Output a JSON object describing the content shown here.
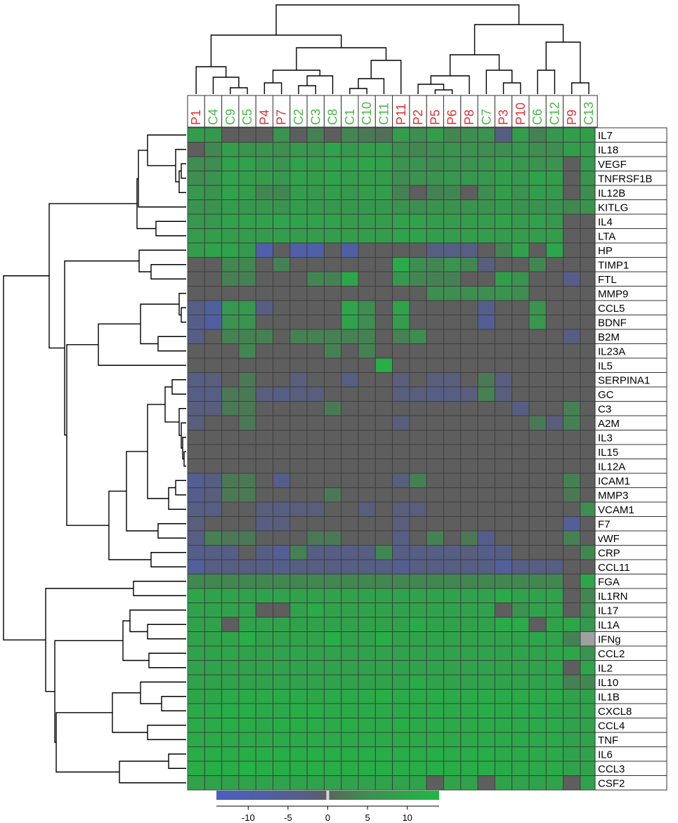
{
  "chart_data": {
    "type": "heatmap",
    "title": "",
    "columns": [
      "P1",
      "C4",
      "C9",
      "C5",
      "P4",
      "P7",
      "C2",
      "C3",
      "C8",
      "C1",
      "C10",
      "C11",
      "P11",
      "P2",
      "P5",
      "P6",
      "P8",
      "C7",
      "P3",
      "P10",
      "C6",
      "C12",
      "P9",
      "C13"
    ],
    "column_groups": {
      "P": "#e03030",
      "C": "#45b845"
    },
    "rows": [
      "IL7",
      "IL18",
      "VEGF",
      "TNFRSF1B",
      "IL12B",
      "KITLG",
      "IL4",
      "LTA",
      "HP",
      "TIMP1",
      "FTL",
      "MMP9",
      "CCL5",
      "BDNF",
      "B2M",
      "IL23A",
      "IL5",
      "SERPINA1",
      "GC",
      "C3",
      "A2M",
      "IL3",
      "IL15",
      "IL12A",
      "ICAM1",
      "MMP3",
      "VCAM1",
      "F7",
      "vWF",
      "CRP",
      "CCL11",
      "FGA",
      "IL1RN",
      "IL17",
      "IL1A",
      "IFNg",
      "CCL2",
      "IL2",
      "IL10",
      "IL1B",
      "CXCL8",
      "CCL4",
      "TNF",
      "IL6",
      "CCL3",
      "CSF2"
    ],
    "values": [
      [
        8,
        7,
        0,
        0,
        0,
        6,
        0,
        3,
        0,
        4,
        2,
        1,
        8,
        5,
        8,
        4,
        5,
        6,
        -3,
        8,
        3,
        7,
        8,
        8
      ],
      [
        0,
        4,
        8,
        6,
        6,
        5,
        7,
        6,
        9,
        7,
        8,
        8,
        5,
        4,
        5,
        6,
        6,
        5,
        5,
        7,
        5,
        5,
        8,
        8
      ],
      [
        5,
        5,
        9,
        9,
        7,
        6,
        9,
        8,
        9,
        9,
        10,
        9,
        6,
        6,
        5,
        6,
        6,
        6,
        8,
        7,
        6,
        6,
        0,
        7
      ],
      [
        5,
        6,
        9,
        8,
        8,
        7,
        9,
        8,
        9,
        8,
        8,
        8,
        5,
        6,
        6,
        7,
        7,
        7,
        8,
        7,
        9,
        8,
        0,
        6
      ],
      [
        7,
        6,
        9,
        8,
        4,
        4,
        8,
        7,
        8,
        7,
        8,
        8,
        3,
        0,
        3,
        4,
        0,
        5,
        8,
        6,
        8,
        7,
        0,
        5
      ],
      [
        6,
        6,
        8,
        7,
        7,
        6,
        8,
        7,
        7,
        7,
        7,
        7,
        6,
        5,
        6,
        6,
        6,
        6,
        7,
        6,
        6,
        6,
        4,
        6
      ],
      [
        7,
        7,
        9,
        9,
        9,
        10,
        9,
        9,
        9,
        8,
        8,
        8,
        9,
        9,
        8,
        8,
        8,
        8,
        9,
        8,
        9,
        7,
        0,
        0
      ],
      [
        8,
        8,
        8,
        8,
        8,
        8,
        8,
        8,
        8,
        8,
        8,
        8,
        9,
        9,
        8,
        8,
        8,
        8,
        8,
        8,
        8,
        8,
        0,
        0
      ],
      [
        8,
        9,
        9,
        7,
        -9,
        0,
        -9,
        -9,
        0,
        -8,
        0,
        0,
        0,
        0,
        -3,
        -3,
        -3,
        0,
        3,
        9,
        0,
        10,
        0,
        0
      ],
      [
        0,
        0,
        4,
        4,
        0,
        3,
        0,
        0,
        0,
        0,
        0,
        0,
        11,
        5,
        4,
        6,
        4,
        -2,
        0,
        0,
        4,
        0,
        0,
        0
      ],
      [
        0,
        0,
        3,
        3,
        0,
        0,
        0,
        4,
        3,
        10,
        0,
        0,
        7,
        4,
        3,
        3,
        0,
        0,
        8,
        6,
        0,
        0,
        -4,
        0
      ],
      [
        0,
        0,
        0,
        0,
        0,
        0,
        0,
        0,
        0,
        0,
        0,
        0,
        0,
        0,
        5,
        5,
        5,
        5,
        6,
        5,
        0,
        0,
        0,
        0
      ],
      [
        -3,
        -7,
        7,
        7,
        -3,
        0,
        0,
        0,
        0,
        10,
        5,
        0,
        9,
        0,
        0,
        0,
        0,
        -4,
        0,
        0,
        6,
        0,
        0,
        0
      ],
      [
        -4,
        -8,
        6,
        6,
        0,
        0,
        0,
        0,
        0,
        9,
        5,
        0,
        8,
        0,
        0,
        0,
        0,
        -5,
        0,
        0,
        7,
        0,
        0,
        0
      ],
      [
        -3,
        0,
        3,
        3,
        3,
        0,
        3,
        3,
        3,
        3,
        3,
        0,
        3,
        5,
        0,
        0,
        0,
        0,
        0,
        0,
        0,
        0,
        -3,
        0
      ],
      [
        0,
        0,
        0,
        4,
        0,
        0,
        0,
        0,
        3,
        0,
        3,
        0,
        0,
        0,
        0,
        0,
        0,
        0,
        0,
        0,
        0,
        0,
        0,
        0
      ],
      [
        0,
        0,
        0,
        0,
        0,
        0,
        0,
        0,
        0,
        0,
        0,
        12,
        0,
        0,
        0,
        0,
        0,
        0,
        0,
        0,
        0,
        0,
        0,
        0
      ],
      [
        -3,
        -2,
        0,
        2,
        0,
        0,
        -2,
        0,
        0,
        -3,
        0,
        0,
        -2,
        0,
        -2,
        -2,
        0,
        2,
        -2,
        0,
        0,
        0,
        0,
        0
      ],
      [
        -3,
        -3,
        2,
        2,
        -2,
        -3,
        -2,
        -2,
        0,
        0,
        0,
        0,
        -2,
        -2,
        -3,
        -3,
        -2,
        3,
        -2,
        0,
        0,
        0,
        0,
        0
      ],
      [
        -2,
        -2,
        2,
        2,
        0,
        0,
        0,
        0,
        2,
        0,
        0,
        0,
        0,
        0,
        0,
        0,
        0,
        0,
        0,
        -3,
        0,
        0,
        3,
        0
      ],
      [
        -2,
        0,
        0,
        2,
        0,
        0,
        0,
        0,
        0,
        0,
        0,
        0,
        -2,
        0,
        0,
        0,
        0,
        0,
        0,
        0,
        2,
        -2,
        3,
        0
      ],
      [
        0,
        0,
        0,
        0,
        0,
        0,
        0,
        0,
        0,
        0,
        0,
        0,
        0,
        0,
        0,
        0,
        0,
        0,
        0,
        0,
        0,
        0,
        0,
        0
      ],
      [
        0,
        0,
        0,
        0,
        0,
        0,
        0,
        0,
        0,
        0,
        0,
        0,
        0,
        0,
        0,
        0,
        0,
        0,
        0,
        0,
        0,
        0,
        0,
        0
      ],
      [
        0,
        0,
        0,
        0,
        0,
        0,
        0,
        0,
        0,
        0,
        0,
        0,
        0,
        0,
        0,
        0,
        0,
        0,
        0,
        0,
        0,
        0,
        0,
        0
      ],
      [
        -5,
        -3,
        2,
        2,
        0,
        -4,
        0,
        0,
        0,
        0,
        0,
        0,
        -2,
        3,
        0,
        0,
        0,
        0,
        0,
        0,
        0,
        0,
        3,
        0
      ],
      [
        -4,
        -2,
        2,
        2,
        0,
        0,
        0,
        0,
        2,
        0,
        0,
        0,
        0,
        0,
        0,
        0,
        0,
        0,
        0,
        0,
        0,
        0,
        2,
        0
      ],
      [
        -3,
        -3,
        0,
        0,
        -2,
        -3,
        -2,
        -2,
        0,
        0,
        -2,
        0,
        -2,
        -2,
        0,
        0,
        0,
        0,
        0,
        0,
        0,
        0,
        0,
        5
      ],
      [
        -2,
        0,
        0,
        0,
        -3,
        -2,
        0,
        0,
        0,
        0,
        0,
        0,
        -2,
        0,
        0,
        0,
        0,
        0,
        0,
        0,
        0,
        0,
        -6,
        0
      ],
      [
        -3,
        3,
        2,
        2,
        0,
        0,
        0,
        2,
        2,
        0,
        0,
        0,
        -3,
        0,
        3,
        0,
        2,
        -4,
        0,
        0,
        0,
        0,
        3,
        0
      ],
      [
        -4,
        -3,
        -3,
        0,
        -3,
        -5,
        3,
        -3,
        -3,
        -3,
        -3,
        4,
        -3,
        -3,
        -3,
        -3,
        -2,
        -4,
        -3,
        0,
        0,
        0,
        0,
        4
      ],
      [
        -7,
        -3,
        -3,
        -3,
        -3,
        -4,
        -3,
        -3,
        -3,
        -3,
        -3,
        -3,
        -5,
        -3,
        -3,
        -3,
        -3,
        -3,
        -6,
        -3,
        -3,
        -3,
        0,
        0
      ],
      [
        4,
        4,
        4,
        4,
        4,
        4,
        4,
        4,
        4,
        4,
        4,
        4,
        4,
        4,
        4,
        4,
        4,
        4,
        4,
        4,
        4,
        4,
        0,
        10
      ],
      [
        10,
        9,
        9,
        9,
        9,
        9,
        9,
        9,
        9,
        9,
        9,
        9,
        9,
        9,
        9,
        9,
        9,
        9,
        11,
        9,
        9,
        9,
        0,
        4
      ],
      [
        9,
        9,
        9,
        9,
        0,
        0,
        9,
        11,
        9,
        9,
        9,
        9,
        9,
        9,
        9,
        9,
        9,
        9,
        0,
        6,
        9,
        9,
        0,
        5
      ],
      [
        9,
        9,
        0,
        9,
        9,
        9,
        9,
        9,
        9,
        9,
        9,
        9,
        9,
        11,
        9,
        9,
        9,
        9,
        11,
        11,
        0,
        9,
        10,
        7
      ],
      [
        9,
        9,
        10,
        12,
        9,
        9,
        9,
        9,
        12,
        9,
        9,
        12,
        9,
        9,
        9,
        9,
        9,
        9,
        9,
        9,
        10,
        9,
        3,
        1
      ],
      [
        9,
        9,
        10,
        9,
        9,
        9,
        10,
        9,
        9,
        9,
        9,
        9,
        9,
        9,
        9,
        9,
        9,
        9,
        9,
        10,
        9,
        10,
        10,
        6
      ],
      [
        9,
        9,
        9,
        9,
        9,
        9,
        9,
        9,
        9,
        9,
        9,
        9,
        9,
        9,
        9,
        9,
        9,
        9,
        9,
        9,
        9,
        10,
        0,
        10
      ],
      [
        9,
        9,
        9,
        9,
        9,
        9,
        9,
        9,
        9,
        9,
        9,
        9,
        9,
        11,
        9,
        9,
        9,
        9,
        9,
        9,
        9,
        9,
        3,
        4
      ],
      [
        10,
        10,
        11,
        11,
        11,
        11,
        11,
        10,
        11,
        11,
        11,
        12,
        11,
        11,
        11,
        11,
        11,
        11,
        11,
        11,
        11,
        11,
        9,
        9
      ],
      [
        11,
        11,
        12,
        12,
        11,
        11,
        12,
        12,
        11,
        11,
        11,
        11,
        11,
        11,
        11,
        11,
        11,
        12,
        11,
        11,
        11,
        10,
        9,
        9
      ],
      [
        11,
        11,
        12,
        12,
        11,
        12,
        12,
        12,
        11,
        12,
        11,
        11,
        12,
        11,
        11,
        11,
        11,
        11,
        11,
        11,
        11,
        11,
        9,
        9
      ],
      [
        11,
        11,
        11,
        11,
        11,
        11,
        11,
        11,
        11,
        11,
        11,
        11,
        11,
        11,
        11,
        11,
        11,
        11,
        11,
        11,
        11,
        11,
        9,
        9
      ],
      [
        12,
        12,
        12,
        12,
        12,
        12,
        12,
        12,
        12,
        12,
        12,
        12,
        12,
        12,
        12,
        12,
        12,
        12,
        11,
        11,
        11,
        11,
        9,
        9
      ],
      [
        12,
        12,
        12,
        13,
        12,
        12,
        12,
        12,
        12,
        12,
        12,
        12,
        12,
        12,
        12,
        12,
        12,
        12,
        11,
        11,
        11,
        11,
        9,
        9
      ],
      [
        9,
        9,
        9,
        9,
        9,
        9,
        9,
        9,
        9,
        9,
        9,
        9,
        9,
        9,
        0,
        9,
        9,
        0,
        9,
        9,
        9,
        9,
        0,
        9
      ]
    ],
    "special_cells": [
      {
        "row": "IFNg",
        "column": "C13",
        "color": "#a0a0a0"
      }
    ],
    "colorbar": {
      "ticks": [
        -10,
        -5,
        0,
        5,
        10
      ],
      "min": -14,
      "max": 14
    },
    "colors": {
      "negative": "#4a5fbe",
      "zero": "#5e5e5e",
      "positive": "#22b645"
    },
    "xlabel": "",
    "ylabel": ""
  }
}
